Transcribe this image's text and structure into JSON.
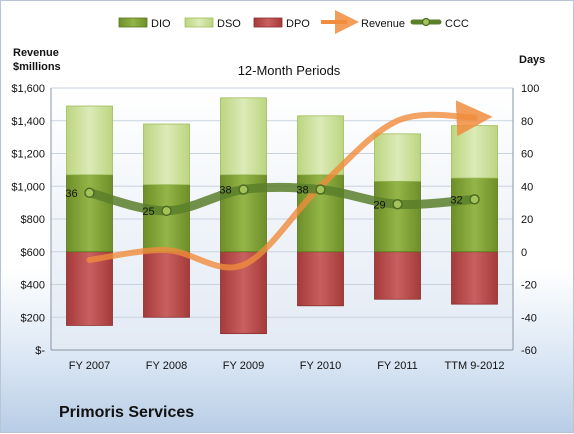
{
  "company": "Primoris Services",
  "chart_data": {
    "type": "bar",
    "title": "12-Month Periods",
    "categories": [
      "FY 2007",
      "FY 2008",
      "FY 2009",
      "FY 2010",
      "FY 2011",
      "TTM 9-2012"
    ],
    "left_axis": {
      "label_line1": "Revenue",
      "label_line2": "$millions",
      "range": [
        0,
        1600
      ],
      "ticks": [
        0,
        200,
        400,
        600,
        800,
        1000,
        1200,
        1400,
        1600
      ],
      "tick_labels": [
        "$-",
        "$200",
        "$400",
        "$600",
        "$800",
        "$1,000",
        "$1,200",
        "$1,400",
        "$1,600"
      ]
    },
    "right_axis": {
      "label": "Days",
      "range": [
        -60,
        100
      ],
      "ticks": [
        -60,
        -40,
        -20,
        0,
        20,
        40,
        60,
        80,
        100
      ],
      "tick_labels": [
        "-60",
        "-40",
        "-20",
        "0",
        "20",
        "40",
        "60",
        "80",
        "100"
      ]
    },
    "legend": {
      "placement": "top"
    },
    "series": [
      {
        "name": "DIO",
        "axis": "right",
        "kind": "stacked-bar",
        "color": "#7a9a2e",
        "values": [
          47,
          41,
          47,
          47,
          43,
          45
        ]
      },
      {
        "name": "DSO",
        "axis": "right",
        "kind": "stacked-bar",
        "color": "#c4dc8a",
        "values": [
          42,
          37,
          47,
          36,
          29,
          32
        ]
      },
      {
        "name": "DPO",
        "axis": "right",
        "kind": "negative-bar",
        "color": "#b84a4a",
        "values": [
          -45,
          -40,
          -50,
          -33,
          -29,
          -32
        ]
      },
      {
        "name": "Revenue",
        "axis": "left",
        "kind": "line",
        "color": "#f08c3c",
        "values": [
          550,
          610,
          520,
          1000,
          1400,
          1420
        ]
      },
      {
        "name": "CCC",
        "axis": "right",
        "kind": "line",
        "color": "#5a7f2a",
        "values": [
          36,
          25,
          38,
          38,
          29,
          32
        ],
        "data_labels": [
          "36",
          "25",
          "38",
          "38",
          "29",
          "32"
        ]
      }
    ]
  }
}
